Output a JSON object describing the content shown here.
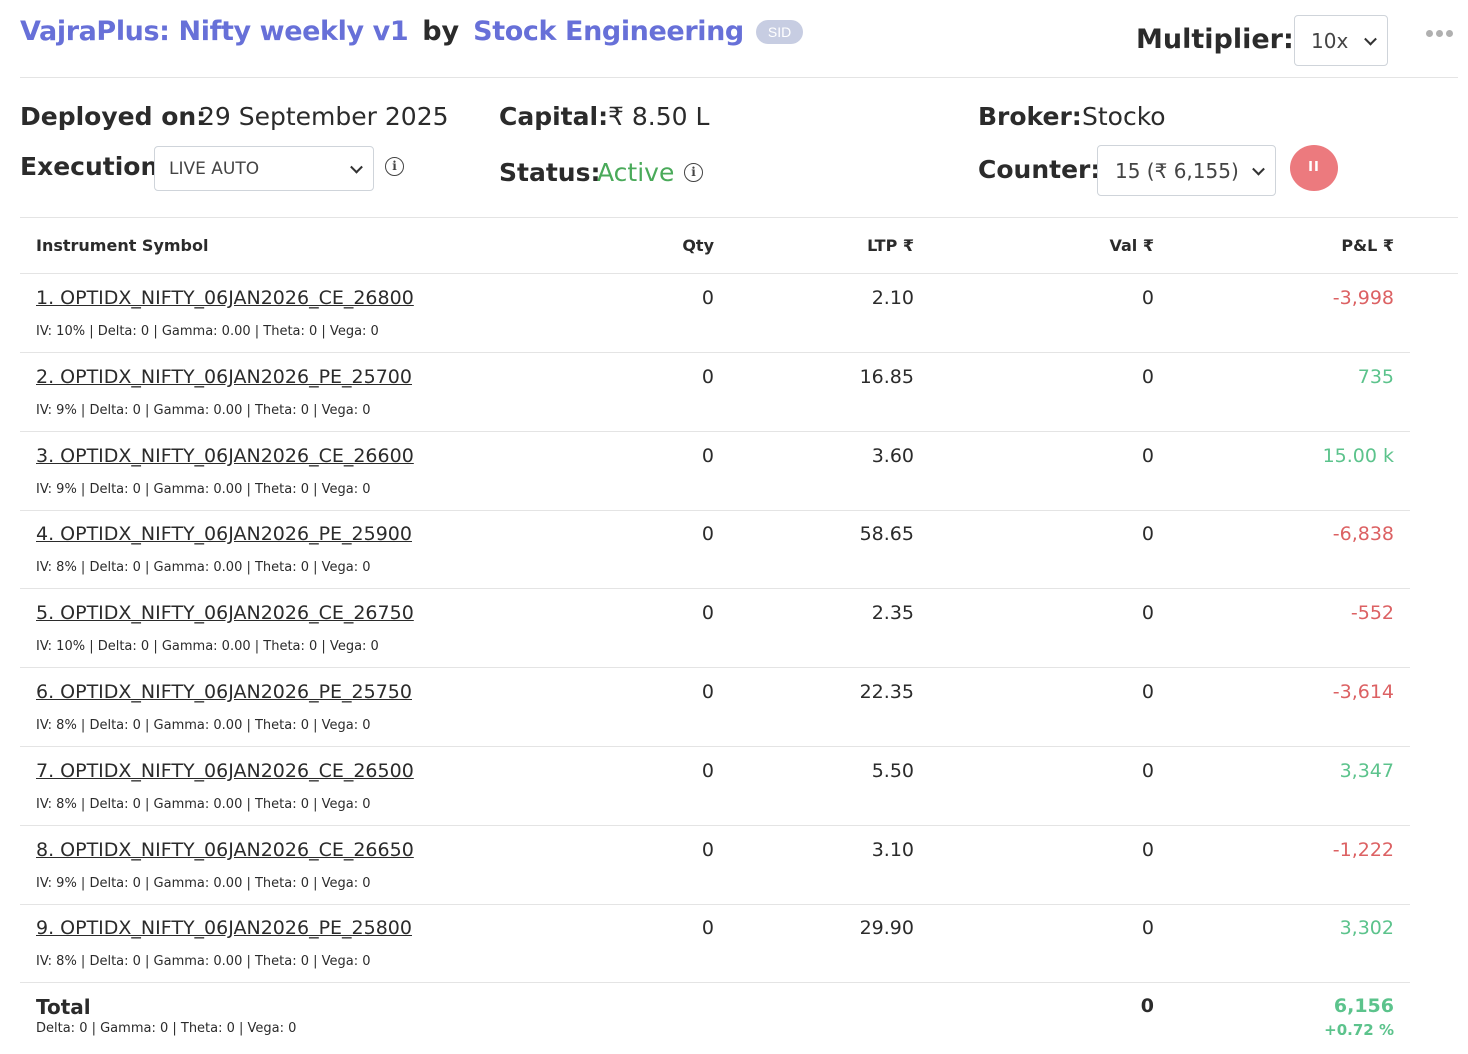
{
  "header": {
    "strategy_name": "VajraPlus: Nifty weekly v1",
    "by_text": "by",
    "author": "Stock Engineering",
    "badge": "SID",
    "multiplier_label": "Multiplier:",
    "multiplier_value": "10x",
    "more_icon": "more-horizontal-icon"
  },
  "info": {
    "deployed_label": "Deployed on:",
    "deployed_value": "29 September 2025",
    "capital_label": "Capital:",
    "capital_value": "₹ 8.50 L",
    "broker_label": "Broker:",
    "broker_value": "Stocko",
    "execution_label": "Execution:",
    "execution_value": "LIVE AUTO",
    "status_label": "Status:",
    "status_value": "Active",
    "counter_label": "Counter:",
    "counter_value": "15 (₹ 6,155)",
    "pause_label": "II",
    "info_icon": "info-icon"
  },
  "table": {
    "headers": {
      "symbol": "Instrument Symbol",
      "qty": "Qty",
      "ltp": "LTP ₹",
      "val": "Val ₹",
      "pnl": "P&L ₹"
    },
    "rows": [
      {
        "symbol": "1. OPTIDX_NIFTY_06JAN2026_CE_26800",
        "greeks": "IV: 10% | Delta: 0 | Gamma: 0.00 | Theta: 0 | Vega: 0",
        "qty": "0",
        "ltp": "2.10",
        "val": "0",
        "pnl": "-3,998",
        "pnl_sign": "neg"
      },
      {
        "symbol": "2. OPTIDX_NIFTY_06JAN2026_PE_25700",
        "greeks": "IV: 9% | Delta: 0 | Gamma: 0.00 | Theta: 0 | Vega: 0",
        "qty": "0",
        "ltp": "16.85",
        "val": "0",
        "pnl": "735",
        "pnl_sign": "pos"
      },
      {
        "symbol": "3. OPTIDX_NIFTY_06JAN2026_CE_26600",
        "greeks": "IV: 9% | Delta: 0 | Gamma: 0.00 | Theta: 0 | Vega: 0",
        "qty": "0",
        "ltp": "3.60",
        "val": "0",
        "pnl": "15.00 k",
        "pnl_sign": "pos"
      },
      {
        "symbol": "4. OPTIDX_NIFTY_06JAN2026_PE_25900",
        "greeks": "IV: 8% | Delta: 0 | Gamma: 0.00 | Theta: 0 | Vega: 0",
        "qty": "0",
        "ltp": "58.65",
        "val": "0",
        "pnl": "-6,838",
        "pnl_sign": "neg"
      },
      {
        "symbol": "5. OPTIDX_NIFTY_06JAN2026_CE_26750",
        "greeks": "IV: 10% | Delta: 0 | Gamma: 0.00 | Theta: 0 | Vega: 0",
        "qty": "0",
        "ltp": "2.35",
        "val": "0",
        "pnl": "-552",
        "pnl_sign": "neg"
      },
      {
        "symbol": "6. OPTIDX_NIFTY_06JAN2026_PE_25750",
        "greeks": "IV: 8% | Delta: 0 | Gamma: 0.00 | Theta: 0 | Vega: 0",
        "qty": "0",
        "ltp": "22.35",
        "val": "0",
        "pnl": "-3,614",
        "pnl_sign": "neg"
      },
      {
        "symbol": "7. OPTIDX_NIFTY_06JAN2026_CE_26500",
        "greeks": "IV: 8% | Delta: 0 | Gamma: 0.00 | Theta: 0 | Vega: 0",
        "qty": "0",
        "ltp": "5.50",
        "val": "0",
        "pnl": "3,347",
        "pnl_sign": "pos"
      },
      {
        "symbol": "8. OPTIDX_NIFTY_06JAN2026_CE_26650",
        "greeks": "IV: 9% | Delta: 0 | Gamma: 0.00 | Theta: 0 | Vega: 0",
        "qty": "0",
        "ltp": "3.10",
        "val": "0",
        "pnl": "-1,222",
        "pnl_sign": "neg"
      },
      {
        "symbol": "9. OPTIDX_NIFTY_06JAN2026_PE_25800",
        "greeks": "IV: 8% | Delta: 0 | Gamma: 0.00 | Theta: 0 | Vega: 0",
        "qty": "0",
        "ltp": "29.90",
        "val": "0",
        "pnl": "3,302",
        "pnl_sign": "pos"
      }
    ],
    "total": {
      "label": "Total",
      "greeks": "Delta: 0 | Gamma: 0  | Theta: 0 | Vega: 0",
      "val": "0",
      "pnl": "6,156",
      "pnl_pct": "+0.72 %"
    }
  },
  "colors": {
    "link": "#6770d8",
    "positive": "#5cc38c",
    "negative": "#dc6163",
    "active_status": "#4aaa5a",
    "pause_button": "#ec7a7e",
    "badge_bg": "#c7cde2"
  }
}
